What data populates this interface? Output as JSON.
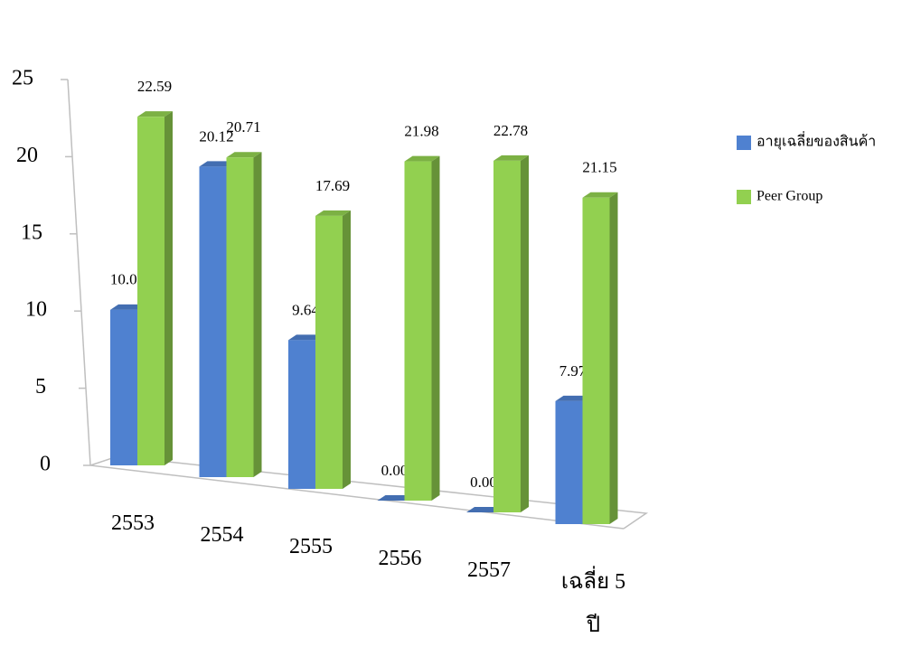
{
  "chart_data": {
    "type": "bar3d",
    "categories": [
      "2553",
      "2554",
      "2555",
      "2556",
      "2557",
      "เฉลี่ย 5 ปี"
    ],
    "series": [
      {
        "name": "อายุเฉลี่ยของสินค้า",
        "color": "#4f81d0",
        "values": [
          10.08,
          20.12,
          9.64,
          0,
          0,
          7.97
        ],
        "value_labels": [
          "10.08",
          "20.12",
          "9.64",
          "0.00",
          "0.00",
          "7.97"
        ]
      },
      {
        "name": "Peer Group",
        "color": "#92d050",
        "values": [
          22.59,
          20.71,
          17.69,
          21.98,
          22.78,
          21.15
        ]
      }
    ],
    "ylim": [
      0,
      25
    ],
    "yticks": [
      0,
      5,
      10,
      15,
      20,
      25
    ],
    "grid": false,
    "legend": "right"
  }
}
